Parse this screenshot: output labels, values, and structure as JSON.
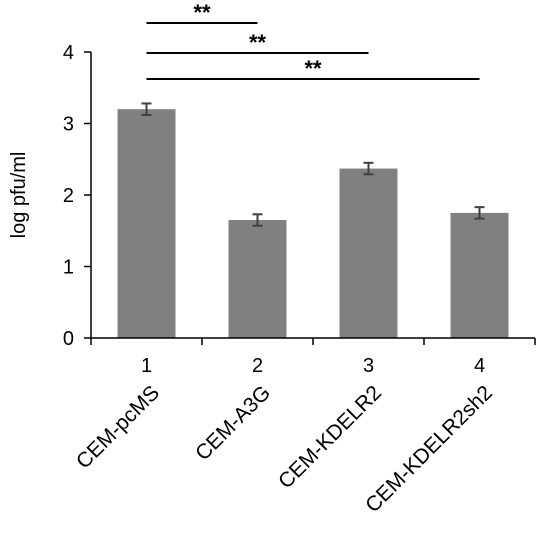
{
  "chart_data": {
    "type": "bar",
    "ylabel": "log pfu/ml",
    "ylim": [
      0,
      4
    ],
    "yticks": [
      "0",
      "1",
      "2",
      "3",
      "4"
    ],
    "categories": [
      "1",
      "2",
      "3",
      "4"
    ],
    "category_labels": [
      "CEM-pcMS",
      "CEM-A3G",
      "CEM-KDELR2",
      "CEM-KDELR2sh2"
    ],
    "values": [
      3.2,
      1.65,
      2.37,
      1.75
    ],
    "errors": [
      0.08,
      0.08,
      0.08,
      0.08
    ],
    "bar_color": "#808080",
    "significance": [
      {
        "from": 1,
        "to": 2,
        "label": "**"
      },
      {
        "from": 1,
        "to": 3,
        "label": "**"
      },
      {
        "from": 1,
        "to": 4,
        "label": "**"
      }
    ],
    "grid": false,
    "legend": "none"
  }
}
